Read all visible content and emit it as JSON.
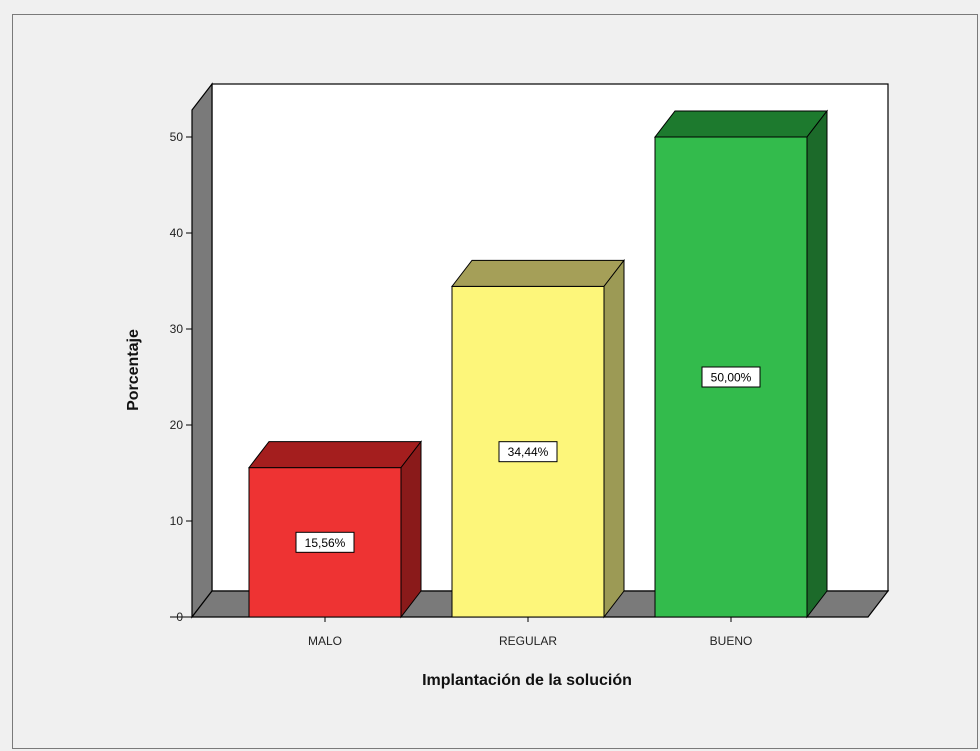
{
  "chart_data": {
    "type": "bar",
    "title": "",
    "xlabel": "Implantación de la solución",
    "ylabel": "Porcentaje",
    "categories": [
      "MALO",
      "REGULAR",
      "BUENO"
    ],
    "values": [
      15.56,
      34.44,
      50.0
    ],
    "data_labels": [
      "15,56%",
      "34,44%",
      "50,00%"
    ],
    "ylim": [
      0,
      55
    ],
    "yticks": [
      0,
      10,
      20,
      30,
      40,
      50
    ],
    "ytick_labels": [
      "0",
      "10",
      "20",
      "30",
      "40",
      "50"
    ],
    "style": "3d",
    "grid": false,
    "legend": "none",
    "colors": {
      "bars": [
        "#ee3333",
        "#fdf67a",
        "#33bb4c"
      ],
      "bar_tops": [
        "#a41e1e",
        "#a59f58",
        "#1d7a2e"
      ],
      "bar_sides": [
        "#8a1a1a",
        "#9c9a55",
        "#1c6a2a"
      ],
      "wall": "#7a7a7a",
      "floor": "#7a7a7a",
      "plot_background": "#ffffff",
      "frame_background": "#f0f0f0"
    }
  }
}
